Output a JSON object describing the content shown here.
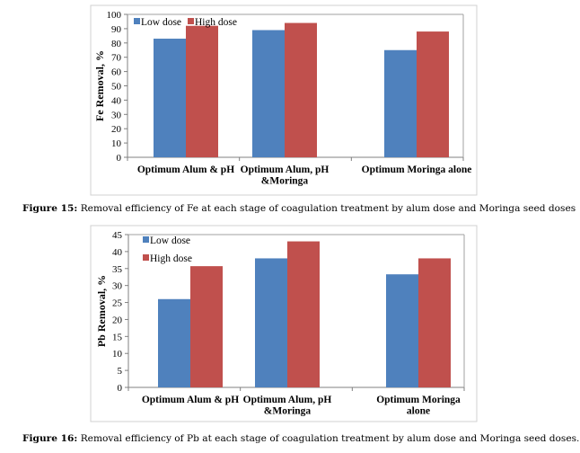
{
  "colors": {
    "low": "#4f81bd",
    "high": "#c0504d"
  },
  "chart_data": [
    {
      "type": "bar",
      "categories": [
        "Optimum Alum & pH",
        "Optimum Alum, pH &Moringa",
        "Optimum Moringa alone"
      ],
      "category_lines": [
        [
          "Optimum Alum & pH"
        ],
        [
          "Optimum Alum, pH",
          "&Moringa"
        ],
        [
          "Optimum Moringa alone"
        ]
      ],
      "series": [
        {
          "name": "Low dose",
          "values": [
            83,
            89,
            75
          ]
        },
        {
          "name": "High dose",
          "values": [
            92,
            94,
            88
          ]
        }
      ],
      "ylabel": "Fe Removal, %",
      "xlabel": "",
      "ylim": [
        0,
        100
      ],
      "yticks": [
        0,
        10,
        20,
        30,
        40,
        50,
        60,
        70,
        80,
        90,
        100
      ],
      "grid": false,
      "legend": "top-left"
    },
    {
      "type": "bar",
      "categories": [
        "Optimum Alum & pH",
        "Optimum Alum, pH &Moringa",
        "Optimum Moringa alone"
      ],
      "category_lines": [
        [
          "Optimum Alum & pH"
        ],
        [
          "Optimum Alum, pH",
          "&Moringa"
        ],
        [
          "Optimum Moringa",
          "alone"
        ]
      ],
      "series": [
        {
          "name": "Low dose",
          "values": [
            26,
            38,
            33.3
          ]
        },
        {
          "name": "High  dose",
          "values": [
            35.7,
            43,
            38
          ]
        }
      ],
      "ylabel": "Pb Removal, %",
      "xlabel": "",
      "ylim": [
        0,
        45
      ],
      "yticks": [
        0,
        5,
        10,
        15,
        20,
        25,
        30,
        35,
        40,
        45
      ],
      "grid": false,
      "legend": "top-left"
    }
  ],
  "captions": [
    {
      "label": "Figure 15:",
      "text": " Removal efficiency of Fe at each stage of coagulation treatment by alum dose and Moringa seed doses"
    },
    {
      "label": "Figure 16:",
      "text": " Removal efficiency of Pb at each stage of coagulation treatment by alum dose and Moringa seed doses."
    }
  ]
}
